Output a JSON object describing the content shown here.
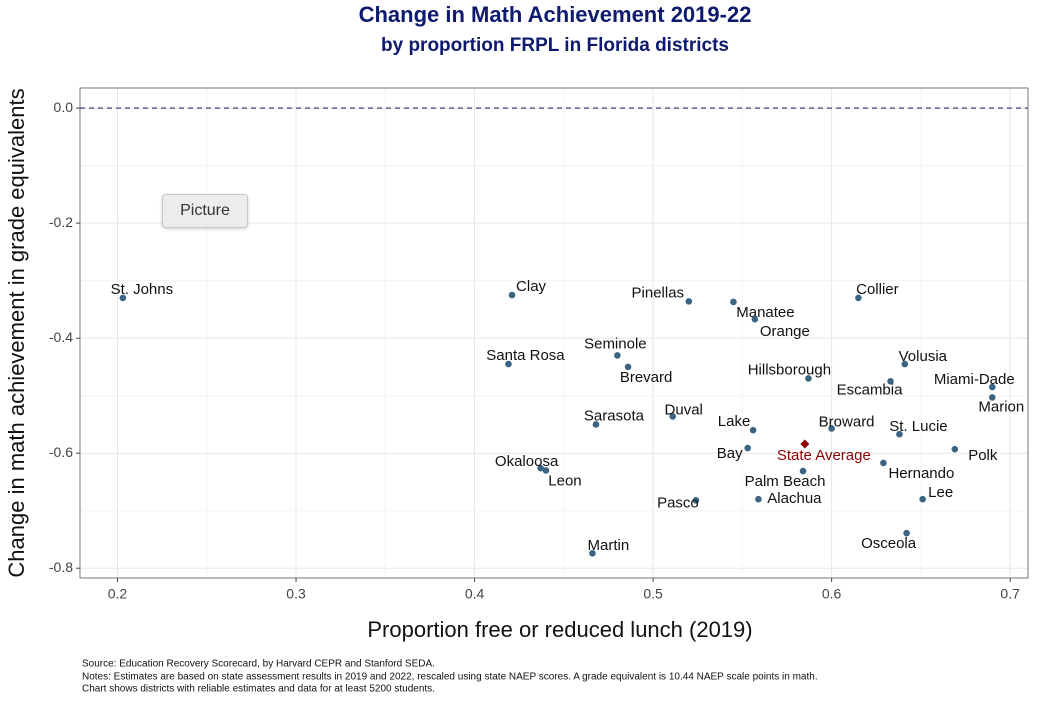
{
  "chart_data": {
    "type": "scatter",
    "title": "Change in Math Achievement 2019-22",
    "subtitle": "by proportion FRPL in Florida districts",
    "x_label": "Proportion free or reduced lunch (2019)",
    "y_label": "Change in math achievement in grade equivalents",
    "point_labels": [
      "St. Johns",
      "Clay",
      "Pinellas",
      "Manatee",
      "Orange",
      "Collier",
      "Seminole",
      "Santa Rosa",
      "Brevard",
      "Volusia",
      "Hillsborough",
      "Escambia",
      "Miami-Dade",
      "Marion",
      "Duval",
      "Sarasota",
      "Lake",
      "Broward",
      "St. Lucie",
      "Bay",
      "Polk",
      "Okaloosa",
      "Leon",
      "Hernando",
      "Palm Beach",
      "Lee",
      "Pasco",
      "Alachua",
      "Osceola",
      "Martin"
    ],
    "x": [
      0.203,
      0.421,
      0.52,
      0.545,
      0.557,
      0.615,
      0.48,
      0.419,
      0.486,
      0.641,
      0.587,
      0.633,
      0.69,
      0.69,
      0.511,
      0.468,
      0.556,
      0.6,
      0.638,
      0.553,
      0.669,
      0.437,
      0.44,
      0.629,
      0.584,
      0.651,
      0.524,
      0.559,
      0.642,
      0.466
    ],
    "values": [
      -0.33,
      -0.325,
      -0.336,
      -0.337,
      -0.367,
      -0.33,
      -0.43,
      -0.445,
      -0.45,
      -0.445,
      -0.47,
      -0.475,
      -0.485,
      -0.503,
      -0.536,
      -0.55,
      -0.56,
      -0.557,
      -0.567,
      -0.591,
      -0.593,
      -0.626,
      -0.63,
      -0.617,
      -0.631,
      -0.68,
      -0.682,
      -0.68,
      -0.739,
      -0.774
    ],
    "color": "#3b6482",
    "highlight": {
      "label": "State Average",
      "x": 0.585,
      "y": -0.584,
      "color": "#8b0000"
    },
    "reference_line": 0,
    "xlim": [
      0.179,
      0.71
    ],
    "xticks": [
      0.2,
      0.3,
      0.4,
      0.5,
      0.6,
      0.7
    ],
    "ylim": [
      -0.817,
      0.035
    ],
    "yticks": [
      {
        "value": 0,
        "label": "0.0"
      },
      -0.2,
      -0.4,
      -0.6,
      -0.8
    ],
    "grid": true,
    "notes": [
      "Source: Education Recovery Scorecard, by Harvard CEPR and Stanford SEDA.",
      "Notes: Estimates are based on state assessment results in 2019 and 2022, rescaled using state NAEP scores. A grade equivalent is 10.44 NAEP scale points in math.",
      "Chart shows districts with reliable estimates and data for at least 5200 students."
    ]
  },
  "overlay_button": "Picture"
}
